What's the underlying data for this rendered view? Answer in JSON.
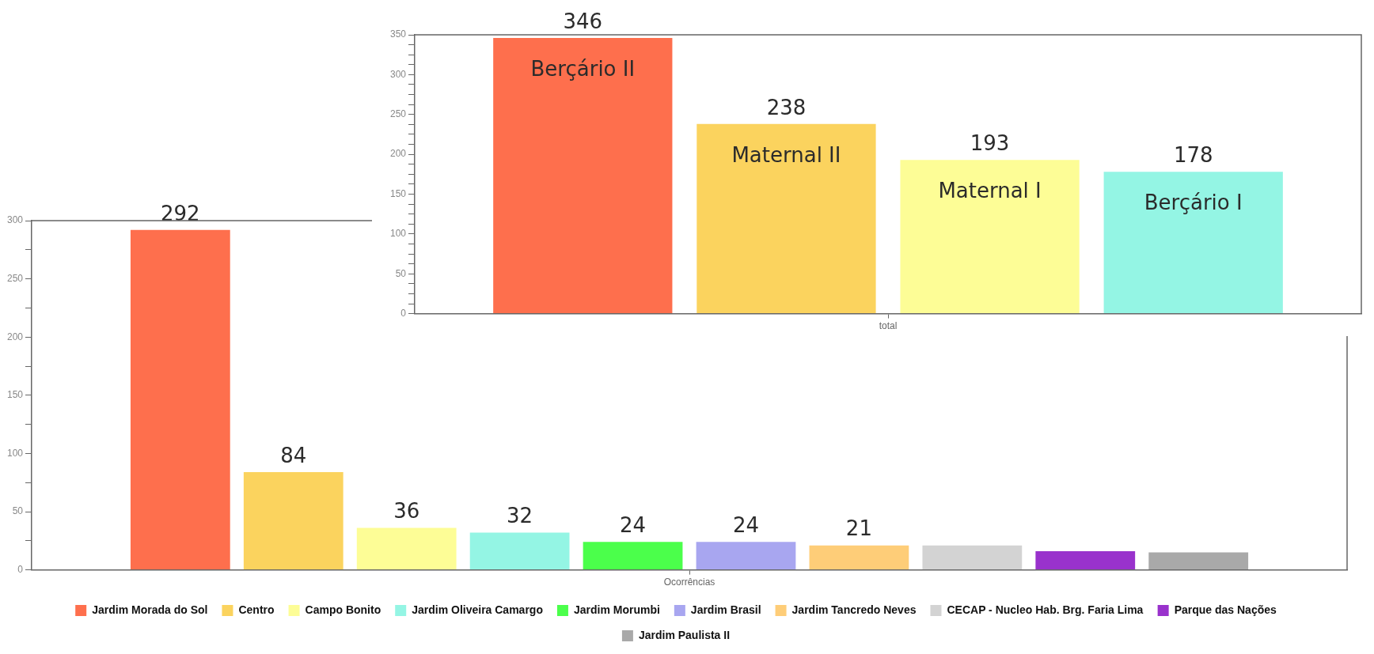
{
  "chart_data": [
    {
      "type": "bar",
      "categories": [
        "Ocorrências"
      ],
      "ylim": [
        0,
        300
      ],
      "yticks": [
        0,
        {
          "value": 25,
          "label": null
        },
        50,
        {
          "value": 75,
          "label": null
        },
        100,
        {
          "value": 125,
          "label": null
        },
        150,
        {
          "value": 175,
          "label": null
        },
        200,
        {
          "value": 225,
          "label": null
        },
        250,
        {
          "value": 275,
          "label": null
        },
        300
      ],
      "legend": "bottom",
      "series": [
        {
          "name": "Jardim Morada do Sol",
          "color": "#fe6f4d",
          "values": [
            292
          ],
          "value_labels": [
            "292"
          ]
        },
        {
          "name": "Centro",
          "color": "#fbd35e",
          "values": [
            84
          ],
          "value_labels": [
            "84"
          ]
        },
        {
          "name": "Campo Bonito",
          "color": "#fdfd96",
          "values": [
            36
          ],
          "value_labels": [
            "36"
          ]
        },
        {
          "name": "Jardim Oliveira Camargo",
          "color": "#94f5e4",
          "values": [
            32
          ],
          "value_labels": [
            "32"
          ]
        },
        {
          "name": "Jardim Morumbi",
          "color": "#4bff4b",
          "values": [
            24
          ],
          "value_labels": [
            "24"
          ]
        },
        {
          "name": "Jardim Brasil",
          "color": "#a8a6f0",
          "values": [
            24
          ],
          "value_labels": [
            "24"
          ]
        },
        {
          "name": "Jardim Tancredo Neves",
          "color": "#fecd78",
          "values": [
            21
          ],
          "value_labels": [
            "21"
          ]
        },
        {
          "name": "CECAP - Nucleo Hab. Brg. Faria Lima",
          "color": "#d3d3d3",
          "values": [
            21
          ],
          "value_labels": [
            null
          ]
        },
        {
          "name": "Parque das Nações",
          "color": "#9932cc",
          "values": [
            16
          ],
          "value_labels": [
            null
          ]
        },
        {
          "name": "Jardim Paulista II",
          "color": "#a9a9a9",
          "values": [
            15
          ],
          "value_labels": [
            null
          ]
        }
      ]
    },
    {
      "type": "bar",
      "categories": [
        "total"
      ],
      "ylim": [
        0,
        350
      ],
      "yticks": [
        0,
        {
          "value": 12.5,
          "label": null
        },
        {
          "value": 25,
          "label": null
        },
        {
          "value": 37.5,
          "label": null
        },
        50,
        {
          "value": 62.5,
          "label": null
        },
        {
          "value": 75,
          "label": null
        },
        {
          "value": 87.5,
          "label": null
        },
        100,
        {
          "value": 112.5,
          "label": null
        },
        {
          "value": 125,
          "label": null
        },
        {
          "value": 137.5,
          "label": null
        },
        150,
        {
          "value": 162.5,
          "label": null
        },
        {
          "value": 175,
          "label": null
        },
        {
          "value": 187.5,
          "label": null
        },
        200,
        {
          "value": 212.5,
          "label": null
        },
        {
          "value": 225,
          "label": null
        },
        {
          "value": 237.5,
          "label": null
        },
        250,
        {
          "value": 262.5,
          "label": null
        },
        {
          "value": 275,
          "label": null
        },
        {
          "value": 287.5,
          "label": null
        },
        300,
        {
          "value": 312.5,
          "label": null
        },
        {
          "value": 325,
          "label": null
        },
        {
          "value": 337.5,
          "label": null
        },
        350
      ],
      "data_labels": true,
      "series": [
        {
          "name": "Berçário II",
          "color": "#fe6f4d",
          "values": [
            346
          ]
        },
        {
          "name": "Maternal II",
          "color": "#fbd35e",
          "values": [
            238
          ]
        },
        {
          "name": "Maternal I",
          "color": "#fdfd96",
          "values": [
            193
          ]
        },
        {
          "name": "Berçário I",
          "color": "#94f5e4",
          "values": [
            178
          ]
        }
      ]
    }
  ]
}
